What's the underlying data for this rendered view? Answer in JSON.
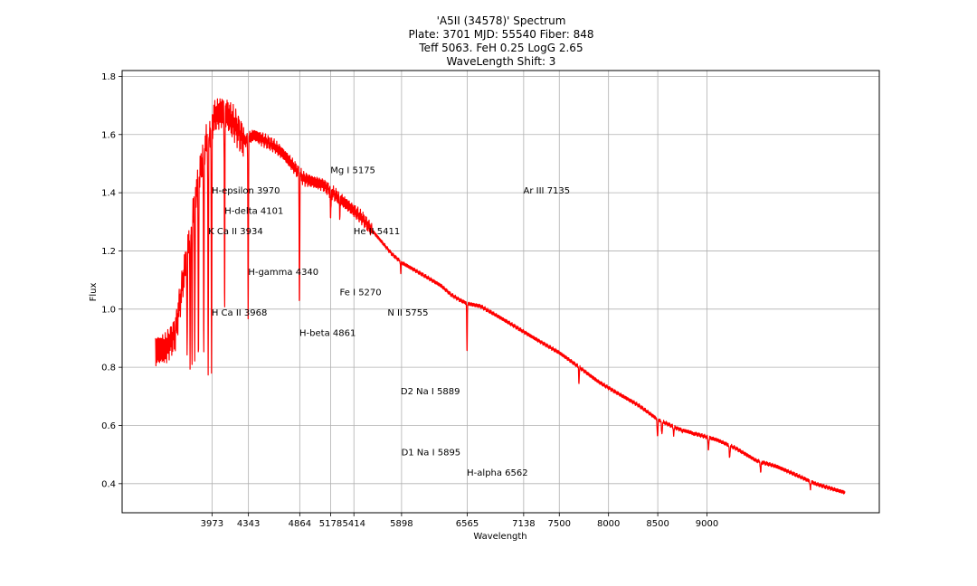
{
  "chart_data": {
    "type": "line",
    "title_lines": [
      "'A5II (34578)' Spectrum",
      "Plate: 3701 MJD: 55540 Fiber: 848",
      "Teff 5063. FeH 0.25 LogG 2.65",
      "WaveLength Shift: 3"
    ],
    "xlabel": "Wavelength",
    "ylabel": "Flux",
    "xlim": [
      3060,
      10750
    ],
    "ylim": [
      0.3,
      1.82
    ],
    "grid": true,
    "line_color": "#ff0000",
    "x_ticks": [
      3973,
      4343,
      4864,
      5178,
      5414,
      5898,
      6565,
      7138,
      7500,
      8000,
      8500,
      9000
    ],
    "x_tick_labels": [
      "3973",
      "4343",
      "4864",
      "5178",
      "5414",
      "5898",
      "6565",
      "7138",
      "7500",
      "8000",
      "8500",
      "9000"
    ],
    "y_ticks": [
      0.4,
      0.6,
      0.8,
      1.0,
      1.2,
      1.4,
      1.6,
      1.8
    ],
    "y_tick_labels": [
      "0.4",
      "0.6",
      "0.8",
      "1.0",
      "1.2",
      "1.4",
      "1.6",
      "1.8"
    ],
    "continuum": [
      [
        3400,
        0.86
      ],
      [
        3500,
        0.87
      ],
      [
        3600,
        0.92
      ],
      [
        3700,
        1.15
      ],
      [
        3800,
        1.38
      ],
      [
        3900,
        1.55
      ],
      [
        4000,
        1.66
      ],
      [
        4100,
        1.68
      ],
      [
        4200,
        1.64
      ],
      [
        4300,
        1.58
      ],
      [
        4400,
        1.6
      ],
      [
        4500,
        1.58
      ],
      [
        4600,
        1.56
      ],
      [
        4700,
        1.53
      ],
      [
        4800,
        1.49
      ],
      [
        4900,
        1.45
      ],
      [
        5000,
        1.44
      ],
      [
        5100,
        1.43
      ],
      [
        5200,
        1.4
      ],
      [
        5300,
        1.37
      ],
      [
        5400,
        1.34
      ],
      [
        5500,
        1.31
      ],
      [
        5600,
        1.27
      ],
      [
        5700,
        1.23
      ],
      [
        5800,
        1.19
      ],
      [
        5900,
        1.16
      ],
      [
        6000,
        1.14
      ],
      [
        6100,
        1.12
      ],
      [
        6200,
        1.1
      ],
      [
        6300,
        1.08
      ],
      [
        6400,
        1.05
      ],
      [
        6500,
        1.03
      ],
      [
        6565,
        1.02
      ],
      [
        6700,
        1.01
      ],
      [
        6900,
        0.97
      ],
      [
        7100,
        0.93
      ],
      [
        7300,
        0.89
      ],
      [
        7500,
        0.85
      ],
      [
        7700,
        0.8
      ],
      [
        7900,
        0.75
      ],
      [
        8100,
        0.71
      ],
      [
        8300,
        0.67
      ],
      [
        8500,
        0.62
      ],
      [
        8700,
        0.59
      ],
      [
        8900,
        0.57
      ],
      [
        9100,
        0.55
      ],
      [
        9300,
        0.52
      ],
      [
        9500,
        0.48
      ],
      [
        9700,
        0.46
      ],
      [
        9900,
        0.43
      ],
      [
        10100,
        0.4
      ],
      [
        10400,
        0.37
      ]
    ],
    "absorption_lines": [
      [
        3720,
        0.82
      ],
      [
        3750,
        0.83
      ],
      [
        3770,
        0.8
      ],
      [
        3798,
        0.8
      ],
      [
        3835,
        0.79
      ],
      [
        3889,
        0.83
      ],
      [
        3934,
        0.77
      ],
      [
        3968,
        0.76
      ],
      [
        4101,
        0.96
      ],
      [
        4340,
        0.96
      ],
      [
        4861,
        1.0
      ],
      [
        5178,
        1.3
      ],
      [
        5270,
        1.32
      ],
      [
        5890,
        1.12
      ],
      [
        6563,
        0.85
      ],
      [
        7700,
        0.74
      ],
      [
        8498,
        0.56
      ],
      [
        8542,
        0.57
      ],
      [
        8662,
        0.57
      ],
      [
        8750,
        0.58
      ],
      [
        8862,
        0.57
      ],
      [
        9015,
        0.52
      ],
      [
        9230,
        0.49
      ],
      [
        9545,
        0.44
      ],
      [
        10050,
        0.38
      ]
    ],
    "annotations": [
      {
        "text": "H-epsilon 3970",
        "x": 3970,
        "y": 1.41
      },
      {
        "text": "H-delta 4101",
        "x": 4101,
        "y": 1.34
      },
      {
        "text": "K Ca II 3934",
        "x": 3934,
        "y": 1.27
      },
      {
        "text": "H-gamma 4340",
        "x": 4340,
        "y": 1.13
      },
      {
        "text": "H Ca II 3968",
        "x": 3968,
        "y": 0.99
      },
      {
        "text": "Mg I 5175",
        "x": 5175,
        "y": 1.48
      },
      {
        "text": "Ar III 7135",
        "x": 7135,
        "y": 1.41
      },
      {
        "text": "He II 5411",
        "x": 5411,
        "y": 1.27
      },
      {
        "text": "Fe I 5270",
        "x": 5270,
        "y": 1.06
      },
      {
        "text": "N II 5755",
        "x": 5755,
        "y": 0.99
      },
      {
        "text": "H-beta 4861",
        "x": 4861,
        "y": 0.92
      },
      {
        "text": "D2 Na I 5889",
        "x": 5889,
        "y": 0.72
      },
      {
        "text": "D1 Na I 5895",
        "x": 5895,
        "y": 0.51
      },
      {
        "text": "H-alpha 6562",
        "x": 6562,
        "y": 0.44
      }
    ]
  }
}
